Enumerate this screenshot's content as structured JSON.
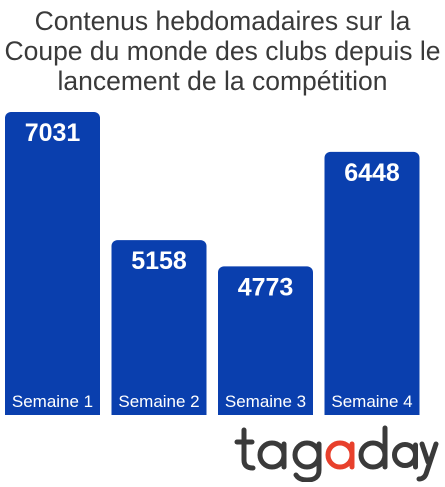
{
  "chart_data": {
    "type": "bar",
    "title": "Contenus hebdomadaires sur la Coupe du monde des clubs depuis le lancement de la compétition",
    "categories": [
      "Semaine 1",
      "Semaine 2",
      "Semaine 3",
      "Semaine 4"
    ],
    "values": [
      7031,
      5158,
      4773,
      6448
    ],
    "xlabel": "",
    "ylabel": "",
    "colors": {
      "bar": "#0a3fae",
      "label": "#ffffff",
      "title": "#3a3a3a"
    }
  },
  "brand": {
    "logo_text": "tagaday",
    "colors": {
      "dark": "#3a3a3a",
      "accent": "#e8402c"
    }
  }
}
